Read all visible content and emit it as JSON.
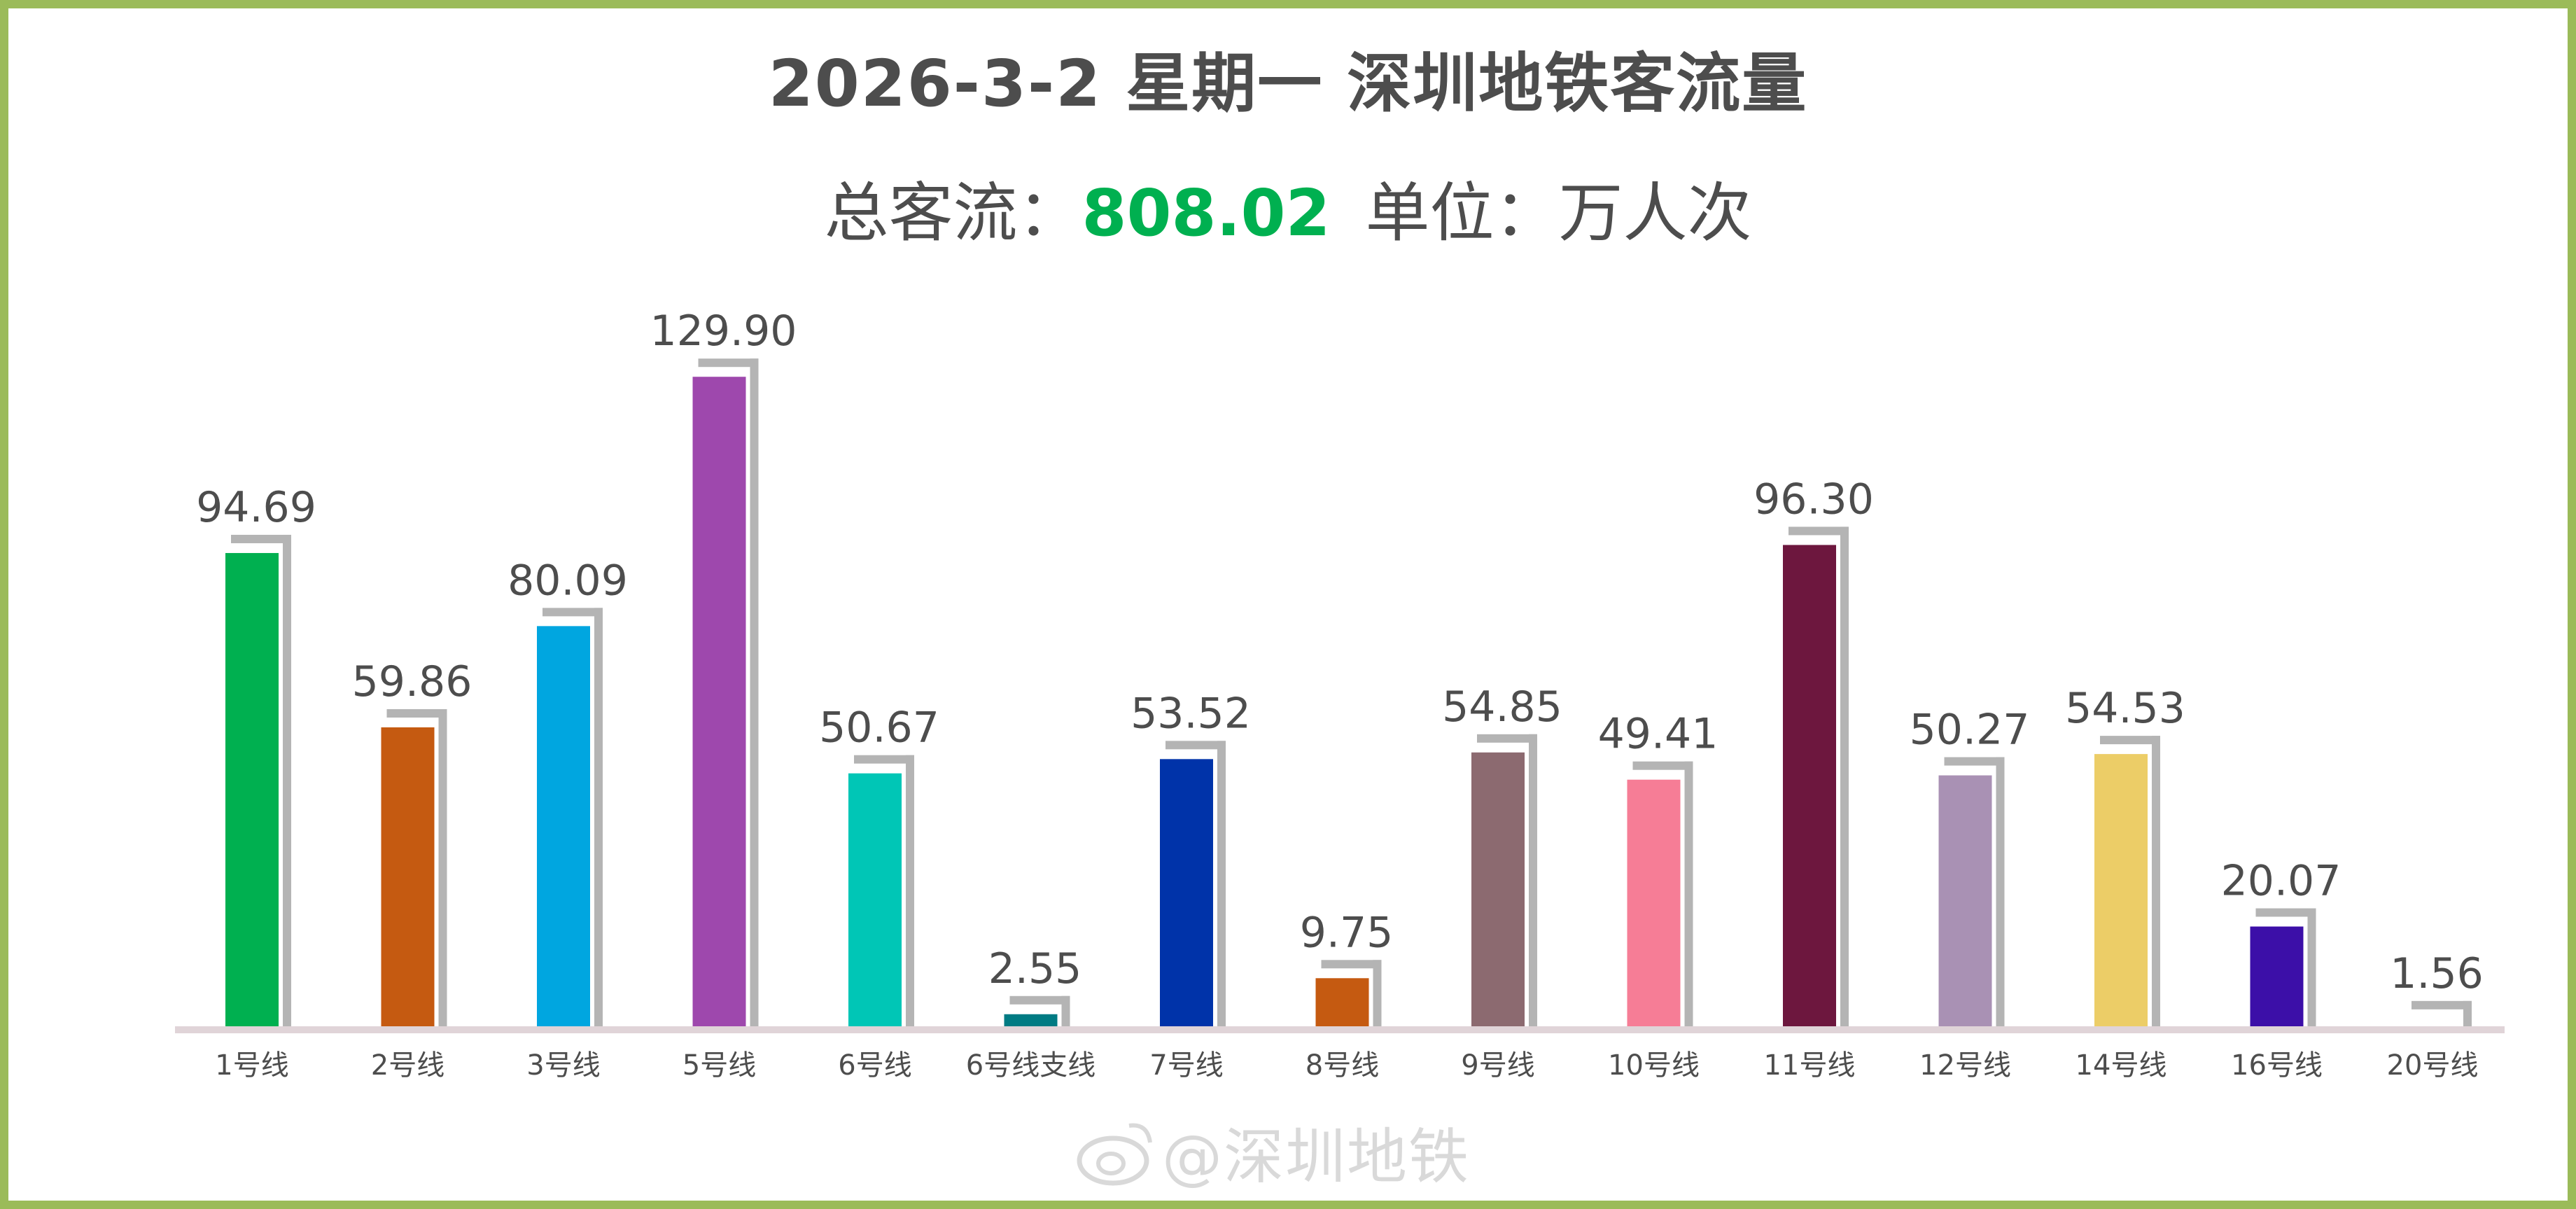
{
  "header": {
    "title": "2026-3-2 星期一  深圳地铁客流量",
    "total_label": "总客流：",
    "total_value": "808.02",
    "unit_label": "单位：万人次"
  },
  "watermark": {
    "text": "@深圳地铁"
  },
  "colors": {
    "frame": "#9bbb59",
    "total": "#00b050",
    "shadow": "#b4b4b4",
    "axis": "#e0d4d8",
    "text": "#4d4d4d"
  },
  "chart_data": {
    "type": "bar",
    "categories": [
      "1号线",
      "2号线",
      "3号线",
      "5号线",
      "6号线",
      "6号线支线",
      "7号线",
      "8号线",
      "9号线",
      "10号线",
      "11号线",
      "12号线",
      "14号线",
      "16号线",
      "20号线"
    ],
    "values": [
      94.69,
      59.86,
      80.09,
      129.9,
      50.67,
      2.55,
      53.52,
      9.75,
      54.85,
      49.41,
      96.3,
      50.27,
      54.53,
      20.07,
      1.56
    ],
    "labels": [
      "94.69",
      "59.86",
      "80.09",
      "129.90",
      "50.67",
      "2.55",
      "53.52",
      "9.75",
      "54.85",
      "49.41",
      "96.30",
      "50.27",
      "54.53",
      "20.07",
      "1.56"
    ],
    "colors": [
      "#00b050",
      "#c55a11",
      "#00a6e0",
      "#9e48ad",
      "#00c6b6",
      "#007b83",
      "#0033a9",
      "#c55a11",
      "#8c6a70",
      "#f67d96",
      "#6d173e",
      "#a991b4",
      "#eccd67",
      "#3c0fa8",
      "#ffffff"
    ],
    "ylim": [
      0,
      140
    ]
  }
}
